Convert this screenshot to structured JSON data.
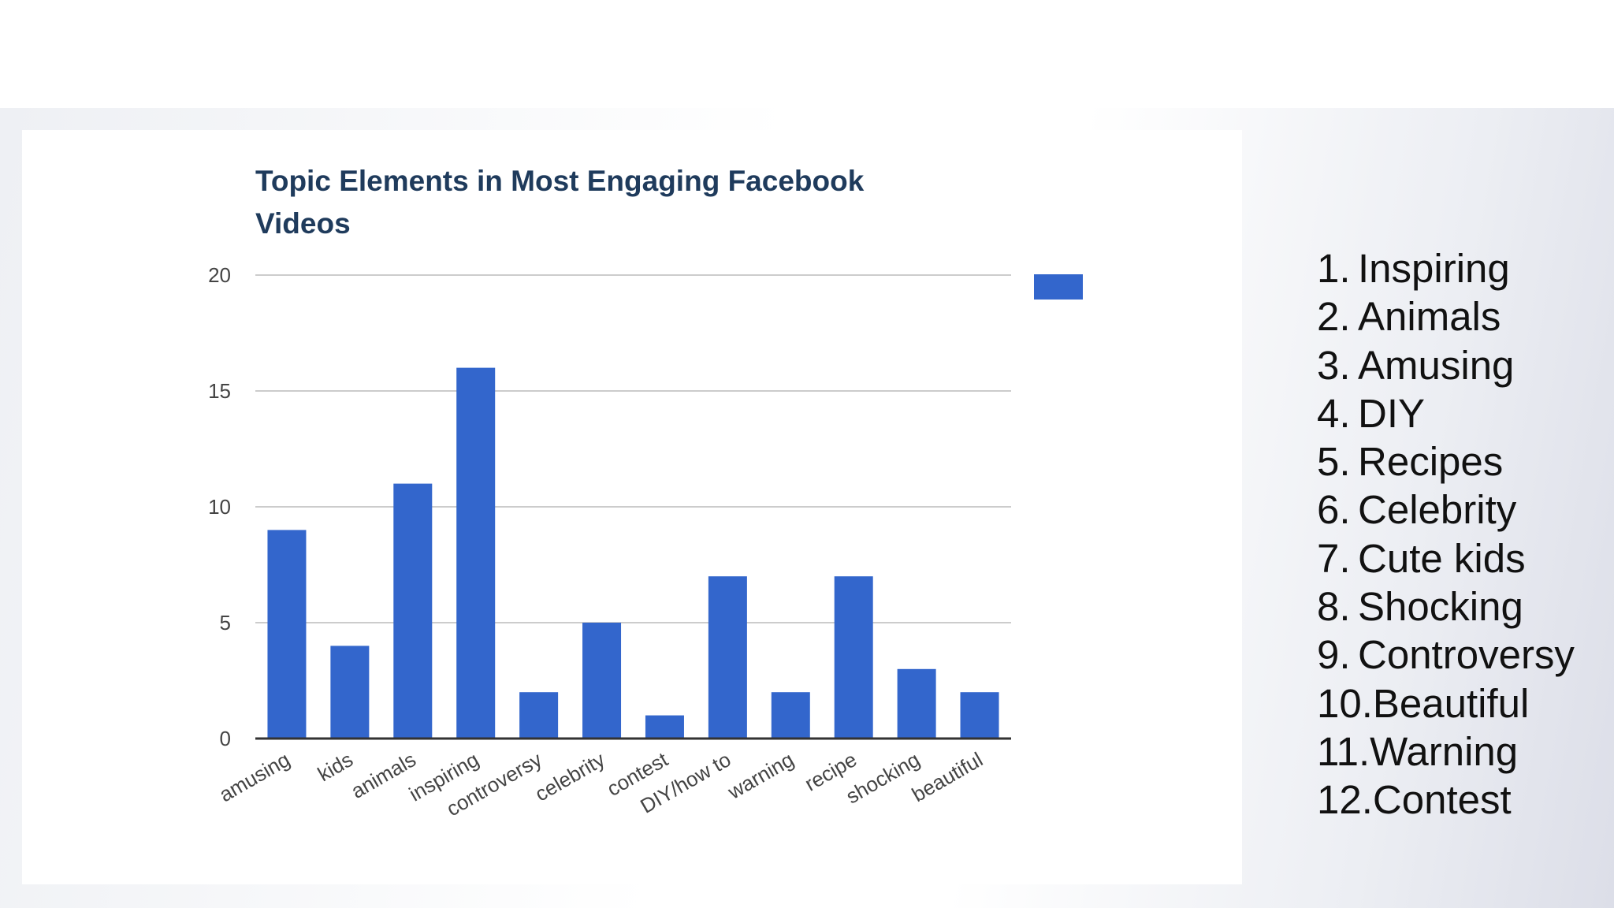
{
  "chart_data": {
    "type": "bar",
    "title": "Topic Elements in Most Engaging Facebook Videos",
    "categories": [
      "amusing",
      "kids",
      "animals",
      "inspiring",
      "controversy",
      "celebrity",
      "contest",
      "DIY/how to",
      "warning",
      "recipe",
      "shocking",
      "beautiful"
    ],
    "values": [
      9,
      4,
      11,
      16,
      2,
      5,
      1,
      7,
      2,
      7,
      3,
      2
    ],
    "ylim": [
      0,
      20
    ],
    "yticks": [
      0,
      5,
      10,
      15,
      20
    ],
    "xlabel": "",
    "ylabel": "",
    "grid": true,
    "legend": "right",
    "colors": {
      "bar": "#3366cc",
      "title": "#1f3b5c",
      "grid": "#cccccc",
      "axis": "#333333",
      "tick_label": "#444444"
    }
  },
  "ranking": [
    {
      "num": "1.",
      "label": "Inspiring"
    },
    {
      "num": "2.",
      "label": "Animals"
    },
    {
      "num": "3.",
      "label": "Amusing"
    },
    {
      "num": "4.",
      "label": "DIY"
    },
    {
      "num": "5.",
      "label": "Recipes"
    },
    {
      "num": "6.",
      "label": "Celebrity"
    },
    {
      "num": "7.",
      "label": "Cute kids"
    },
    {
      "num": "8.",
      "label": "Shocking"
    },
    {
      "num": "9.",
      "label": "Controversy"
    },
    {
      "num": "10.",
      "label": "Beautiful"
    },
    {
      "num": "11.",
      "label": "Warning"
    },
    {
      "num": "12.",
      "label": "Contest"
    }
  ]
}
